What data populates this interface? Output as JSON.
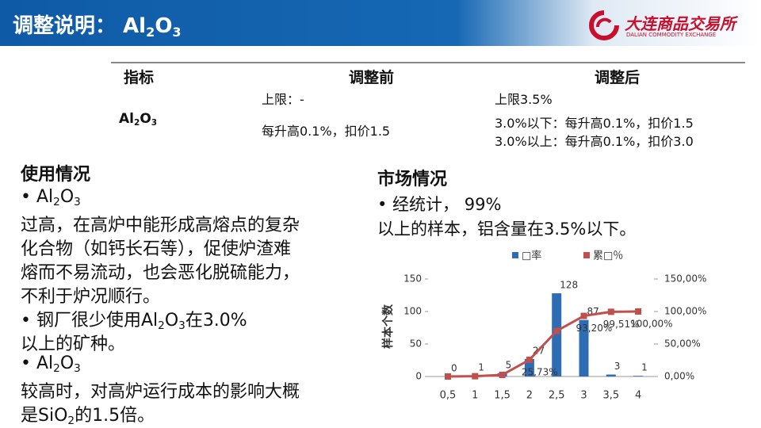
{
  "header": {
    "title": [
      "调整说明： Al",
      "2",
      "O",
      "3"
    ],
    "logo": "大连商品交易所",
    "logo_en": "DALIAN COMMODITY EXCHANGE"
  },
  "table": {
    "headers": [
      "指标",
      "调整前",
      "调整后"
    ],
    "indicator": [
      "Al",
      "2",
      "O",
      "3"
    ],
    "before": [
      "上限：-",
      "每升高0.1%，扣价1.5"
    ],
    "after": [
      "上限3.5%",
      "3.0%以下：每升高0.1%，扣价1.5",
      "3.0%以上：每升高0.1%，扣价3.0"
    ]
  },
  "usage": {
    "title": "使用情况",
    "lines": [
      [
        "•   Al",
        "2",
        "O",
        "3"
      ],
      [
        "过高，在高炉中能形成高熔点的复杂"
      ],
      [
        "化合物（如钙长石等），促使炉渣难"
      ],
      [
        "熔而不易流动，也会恶化脱硫能力，"
      ],
      [
        "不利于炉况顺行。"
      ],
      [
        "•   钢厂很少使用Al",
        "2",
        "O",
        "3",
        "在3.0%"
      ],
      [
        "以上的矿种。"
      ],
      [
        "•   Al",
        "2",
        "O",
        "3"
      ],
      [
        "较高时，对高炉运行成本的影响大概"
      ],
      [
        "是SiO",
        "2",
        "的1.5倍。"
      ]
    ]
  },
  "market": {
    "title": "市场情况",
    "lines": [
      "•    经统计， 99%",
      "以上的样本，铝含量在3.5%以下。"
    ]
  },
  "chart_data": {
    "type": "bar-line",
    "y_label": "样本个数",
    "categories": [
      "0,5",
      "1",
      "1,5",
      "2",
      "2,5",
      "3",
      "3,5",
      "4"
    ],
    "series": [
      {
        "name": "□率",
        "color": "#2e6db4",
        "values": [
          0,
          1,
          5,
          27,
          128,
          87,
          3,
          1
        ]
      },
      {
        "name": "累□％",
        "color": "#c0504d",
        "axis": "y2",
        "values": [
          0,
          0.41,
          2.44,
          25.73,
          70,
          93.2,
          99.51,
          100
        ],
        "value_labels": [
          null,
          null,
          null,
          "25,73%",
          null,
          "93,20%",
          "99,51%",
          "100,00%"
        ]
      }
    ],
    "ylim": [
      0,
      150
    ],
    "yticks": [
      0,
      50,
      100,
      150
    ],
    "y2lim": [
      0,
      150
    ],
    "y2ticks": [
      {
        "value": 0,
        "label": "0,00%"
      },
      {
        "value": 50,
        "label": "50,00%"
      },
      {
        "value": 100,
        "label": "100,00%"
      },
      {
        "value": 150,
        "label": "150,00%"
      }
    ]
  }
}
